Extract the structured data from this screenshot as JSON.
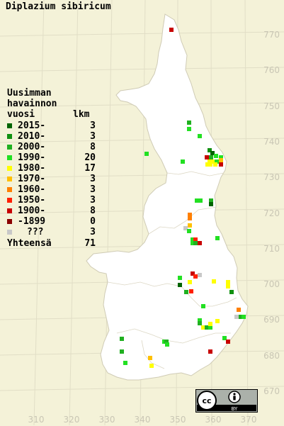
{
  "title": "Diplazium sibiricum",
  "legend": {
    "heading": [
      "Uusimman",
      "havainnon",
      "vuosi"
    ],
    "count_header": "lkm",
    "rows": [
      {
        "label": "2015-",
        "count": "3",
        "color": "#006400"
      },
      {
        "label": "2010-",
        "count": "3",
        "color": "#109010"
      },
      {
        "label": "2000-",
        "count": "8",
        "color": "#20b020"
      },
      {
        "label": "1990-",
        "count": "20",
        "color": "#22e022"
      },
      {
        "label": "1980-",
        "count": "17",
        "color": "#ffff00"
      },
      {
        "label": "1970-",
        "count": "3",
        "color": "#ffc000"
      },
      {
        "label": "1960-",
        "count": "3",
        "color": "#ff8000"
      },
      {
        "label": "1950-",
        "count": "3",
        "color": "#ff2000"
      },
      {
        "label": "1900-",
        "count": "8",
        "color": "#c80000"
      },
      {
        "label": "-1899",
        "count": "0",
        "color": "#8b0000"
      },
      {
        "label": "???",
        "count": "3",
        "color": "#c8c8c8"
      }
    ],
    "total_label": "Yhteensä",
    "total_count": "71"
  },
  "y_axis_labels": [
    "770",
    "760",
    "750",
    "740",
    "730",
    "720",
    "710",
    "700",
    "690",
    "680",
    "670"
  ],
  "x_axis_labels": [
    "310",
    "320",
    "330",
    "340",
    "350",
    "360",
    "370"
  ],
  "license_badge": {
    "cc": "cc",
    "by": "BY"
  },
  "observation_colors": {
    "2015": "#006400",
    "2010": "#109010",
    "2000": "#20b020",
    "1990": "#22e022",
    "1980": "#ffff00",
    "1970": "#ffc000",
    "1960": "#ff8000",
    "1950": "#ff2000",
    "1900": "#c80000",
    "unknown": "#c8c8c8"
  }
}
